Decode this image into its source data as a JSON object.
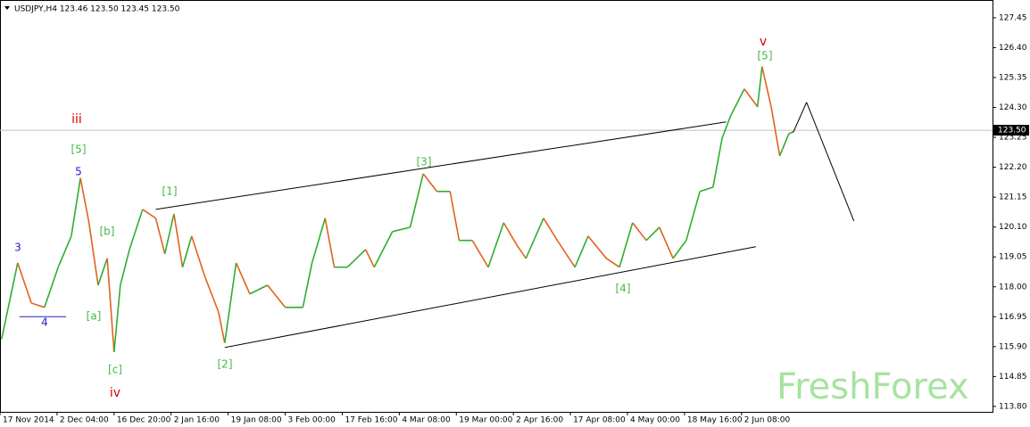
{
  "chart_data": {
    "type": "line",
    "header": "USDJPY,H4  123.46 123.50 123.45 123.50",
    "watermark": "FreshForex",
    "current_price": {
      "value": 123.5,
      "label": "123.50"
    },
    "ylim": [
      113.61,
      128.01
    ],
    "yticks": [
      {
        "value": 113.8,
        "label": "113.80"
      },
      {
        "value": 114.85,
        "label": "114.85"
      },
      {
        "value": 115.9,
        "label": "115.90"
      },
      {
        "value": 116.95,
        "label": "116.95"
      },
      {
        "value": 118,
        "label": "118.00"
      },
      {
        "value": 119.05,
        "label": "119.05"
      },
      {
        "value": 120.1,
        "label": "120.10"
      },
      {
        "value": 121.15,
        "label": "121.15"
      },
      {
        "value": 122.2,
        "label": "122.20"
      },
      {
        "value": 123.25,
        "label": "123.25"
      },
      {
        "value": 124.3,
        "label": "124.30"
      },
      {
        "value": 125.35,
        "label": "125.35"
      },
      {
        "value": 126.4,
        "label": "126.40"
      },
      {
        "value": 127.45,
        "label": "127.45"
      }
    ],
    "xlim": [
      0,
      17.4
    ],
    "xticks": [
      {
        "value": 0,
        "label": "17 Nov 2014"
      },
      {
        "value": 1,
        "label": "2 Dec 04:00"
      },
      {
        "value": 2,
        "label": "16 Dec 20:00"
      },
      {
        "value": 3,
        "label": "2 Jan 16:00"
      },
      {
        "value": 4,
        "label": "19 Jan 08:00"
      },
      {
        "value": 5,
        "label": "3 Feb 00:00"
      },
      {
        "value": 6,
        "label": "17 Feb 16:00"
      },
      {
        "value": 7,
        "label": "4 Mar 08:00"
      },
      {
        "value": 8,
        "label": "19 Mar 00:00"
      },
      {
        "value": 9,
        "label": "2 Apr 16:00"
      },
      {
        "value": 10,
        "label": "17 Apr 08:00"
      },
      {
        "value": 11,
        "label": "4 May 00:00"
      },
      {
        "value": 12,
        "label": "18 May 16:00"
      },
      {
        "value": 13,
        "label": "2 Jun 08:00"
      }
    ],
    "series": [
      {
        "up_color": "#2fae2f",
        "down_color": "#e2621e",
        "x": [
          0.03,
          0.31,
          0.55,
          0.78,
          1.02,
          1.25,
          1.41,
          1.56,
          1.72,
          1.88,
          2.0,
          2.11,
          2.27,
          2.5,
          2.73,
          2.89,
          3.05,
          3.2,
          3.36,
          3.59,
          3.83,
          3.94,
          4.14,
          4.38,
          4.69,
          5.0,
          5.31,
          5.47,
          5.7,
          5.86,
          6.09,
          6.41,
          6.56,
          6.88,
          7.19,
          7.42,
          7.66,
          7.89,
          8.05,
          8.28,
          8.56,
          8.83,
          9.06,
          9.22,
          9.53,
          9.77,
          10.08,
          10.31,
          10.63,
          10.86,
          11.09,
          11.33,
          11.56,
          11.8,
          12.03,
          12.27,
          12.5,
          12.66,
          12.81,
          13.05,
          13.28,
          13.36,
          13.52,
          13.67,
          13.83,
          13.91
        ],
        "values": [
          116.18,
          118.84,
          117.43,
          117.28,
          118.69,
          119.78,
          121.82,
          120.25,
          118.06,
          119.0,
          115.71,
          118.06,
          119.31,
          120.72,
          120.41,
          119.16,
          120.56,
          118.69,
          119.78,
          118.37,
          117.12,
          116.03,
          118.84,
          117.75,
          118.06,
          117.28,
          117.28,
          118.84,
          120.41,
          118.69,
          118.69,
          119.31,
          118.69,
          119.94,
          120.09,
          121.97,
          121.35,
          121.35,
          119.63,
          119.63,
          118.69,
          120.25,
          119.47,
          119.0,
          120.41,
          119.63,
          118.69,
          119.78,
          119.0,
          118.69,
          120.25,
          119.63,
          120.09,
          119.0,
          119.63,
          121.35,
          121.5,
          123.22,
          124.01,
          124.95,
          124.32,
          125.73,
          124.32,
          122.6,
          123.38,
          123.44
        ]
      },
      {
        "color": "#000000",
        "x": [
          13.91,
          14.14,
          14.97
        ],
        "values": [
          123.44,
          124.48,
          120.31
        ]
      }
    ],
    "trendlines": [
      {
        "color": "#000000",
        "x": [
          2.73,
          12.73
        ],
        "values": [
          120.72,
          123.79
        ]
      },
      {
        "color": "#000000",
        "x": [
          3.94,
          13.25
        ],
        "values": [
          115.87,
          119.41
        ]
      },
      {
        "color": "#2222cc",
        "x": [
          0.34,
          1.16
        ],
        "values": [
          116.95,
          116.95
        ]
      }
    ],
    "annotations": [
      {
        "text": "3",
        "color": "#2222cc"
      },
      {
        "text": "4",
        "color": "#2222cc"
      },
      {
        "text": "5",
        "color": "#2222cc"
      },
      {
        "text": "[5]",
        "color": "#44bb44"
      },
      {
        "text": "iii",
        "color": "#dd0000"
      },
      {
        "text": "[b]",
        "color": "#44bb44"
      },
      {
        "text": "[a]",
        "color": "#44bb44"
      },
      {
        "text": "[c]",
        "color": "#44bb44"
      },
      {
        "text": "iv",
        "color": "#dd0000"
      },
      {
        "text": "[1]",
        "color": "#44bb44"
      },
      {
        "text": "[2]",
        "color": "#44bb44"
      },
      {
        "text": "[3]",
        "color": "#44bb44"
      },
      {
        "text": "[4]",
        "color": "#44bb44"
      },
      {
        "text": "[5]",
        "color": "#44bb44"
      },
      {
        "text": "v",
        "color": "#dd0000"
      }
    ]
  }
}
